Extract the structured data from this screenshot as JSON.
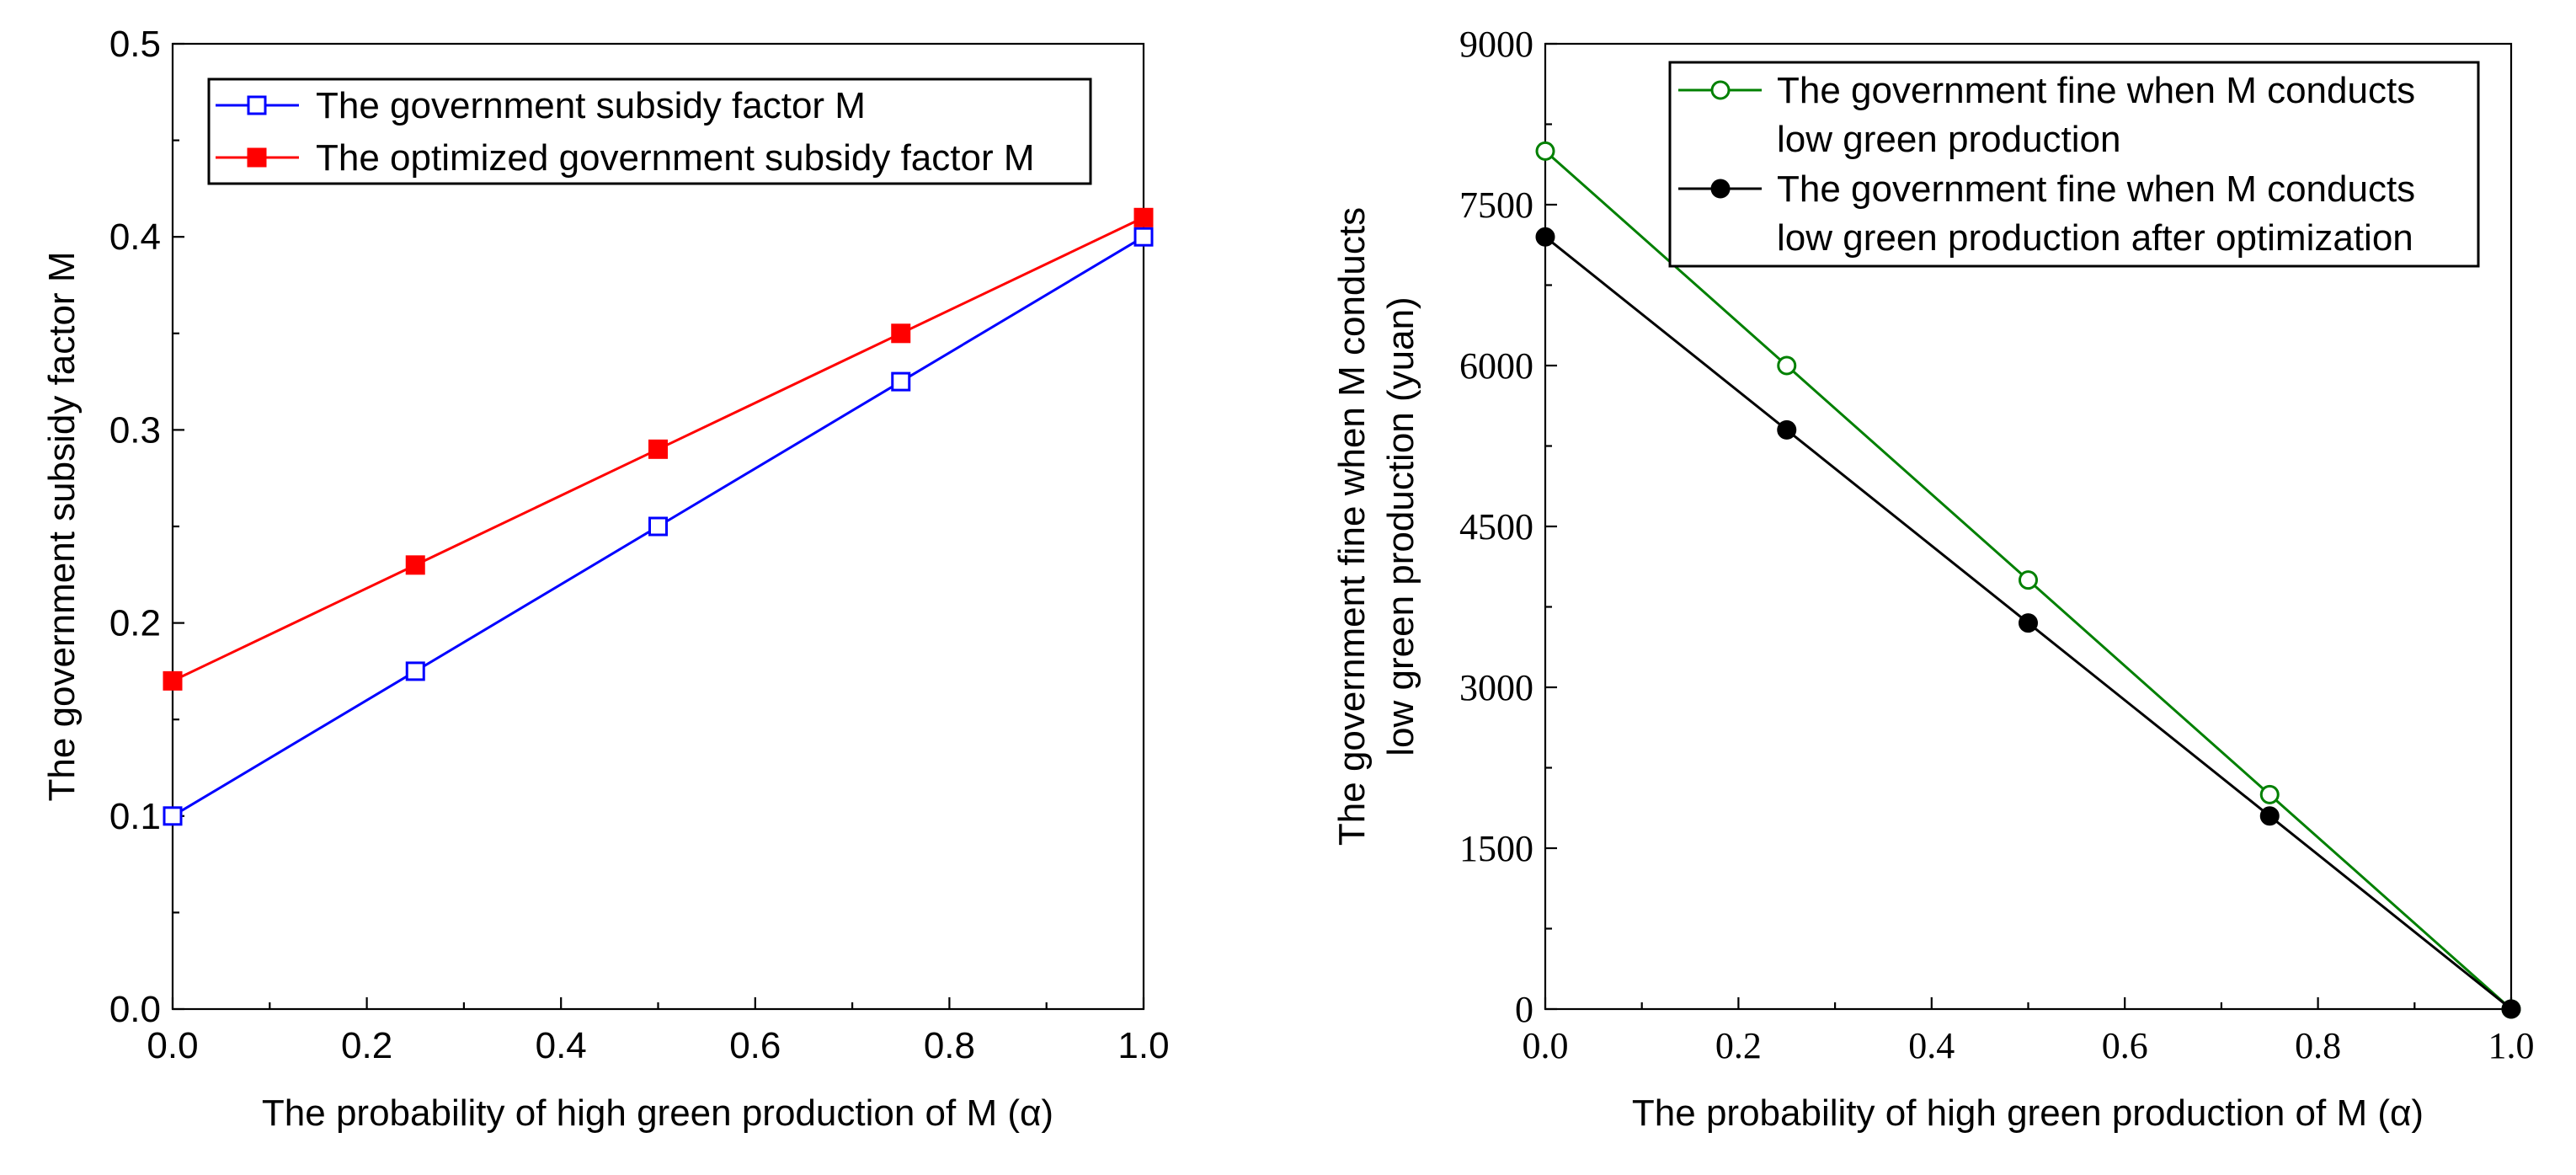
{
  "chart_data": [
    {
      "type": "line",
      "title": "",
      "xlabel": "The probability of high green production of M (α)",
      "ylabel": "The government subsidy factor M",
      "xlim": [
        0,
        1
      ],
      "ylim": [
        0,
        0.5
      ],
      "xticks": [
        "0.0",
        "0.2",
        "0.4",
        "0.6",
        "0.8",
        "1.0"
      ],
      "yticks": [
        "0.0",
        "0.1",
        "0.2",
        "0.3",
        "0.4",
        "0.5"
      ],
      "legend_position": "top-left",
      "x": [
        0,
        0.25,
        0.5,
        0.75,
        1.0
      ],
      "series": [
        {
          "name": "The government subsidy factor M",
          "color": "#0000ff",
          "marker": "square-open",
          "values": [
            0.1,
            0.175,
            0.25,
            0.325,
            0.4
          ]
        },
        {
          "name": "The optimized government subsidy factor M",
          "color": "#ff0000",
          "marker": "square-filled",
          "values": [
            0.17,
            0.23,
            0.29,
            0.35,
            0.41
          ]
        }
      ]
    },
    {
      "type": "line",
      "title": "",
      "xlabel": "The probability of high green production of M (α)",
      "ylabel_lines": [
        "The government fine when M conducts",
        "low green production (yuan)"
      ],
      "xlim": [
        0,
        1
      ],
      "ylim": [
        0,
        9000
      ],
      "xticks": [
        "0.0",
        "0.2",
        "0.4",
        "0.6",
        "0.8",
        "1.0"
      ],
      "yticks": [
        "0",
        "1500",
        "3000",
        "4500",
        "6000",
        "7500",
        "9000"
      ],
      "legend_position": "top-right",
      "x": [
        0,
        0.25,
        0.5,
        0.75,
        1.0
      ],
      "series": [
        {
          "name_lines": [
            "The government fine when M conducts",
            "low green production"
          ],
          "color": "#008000",
          "marker": "circle-open",
          "values": [
            8000,
            6000,
            4000,
            2000,
            0
          ]
        },
        {
          "name_lines": [
            "The government fine when M conducts",
            "low green production after optimization"
          ],
          "color": "#000000",
          "marker": "circle-filled",
          "values": [
            7200,
            5400,
            3600,
            1800,
            0
          ]
        }
      ]
    }
  ]
}
